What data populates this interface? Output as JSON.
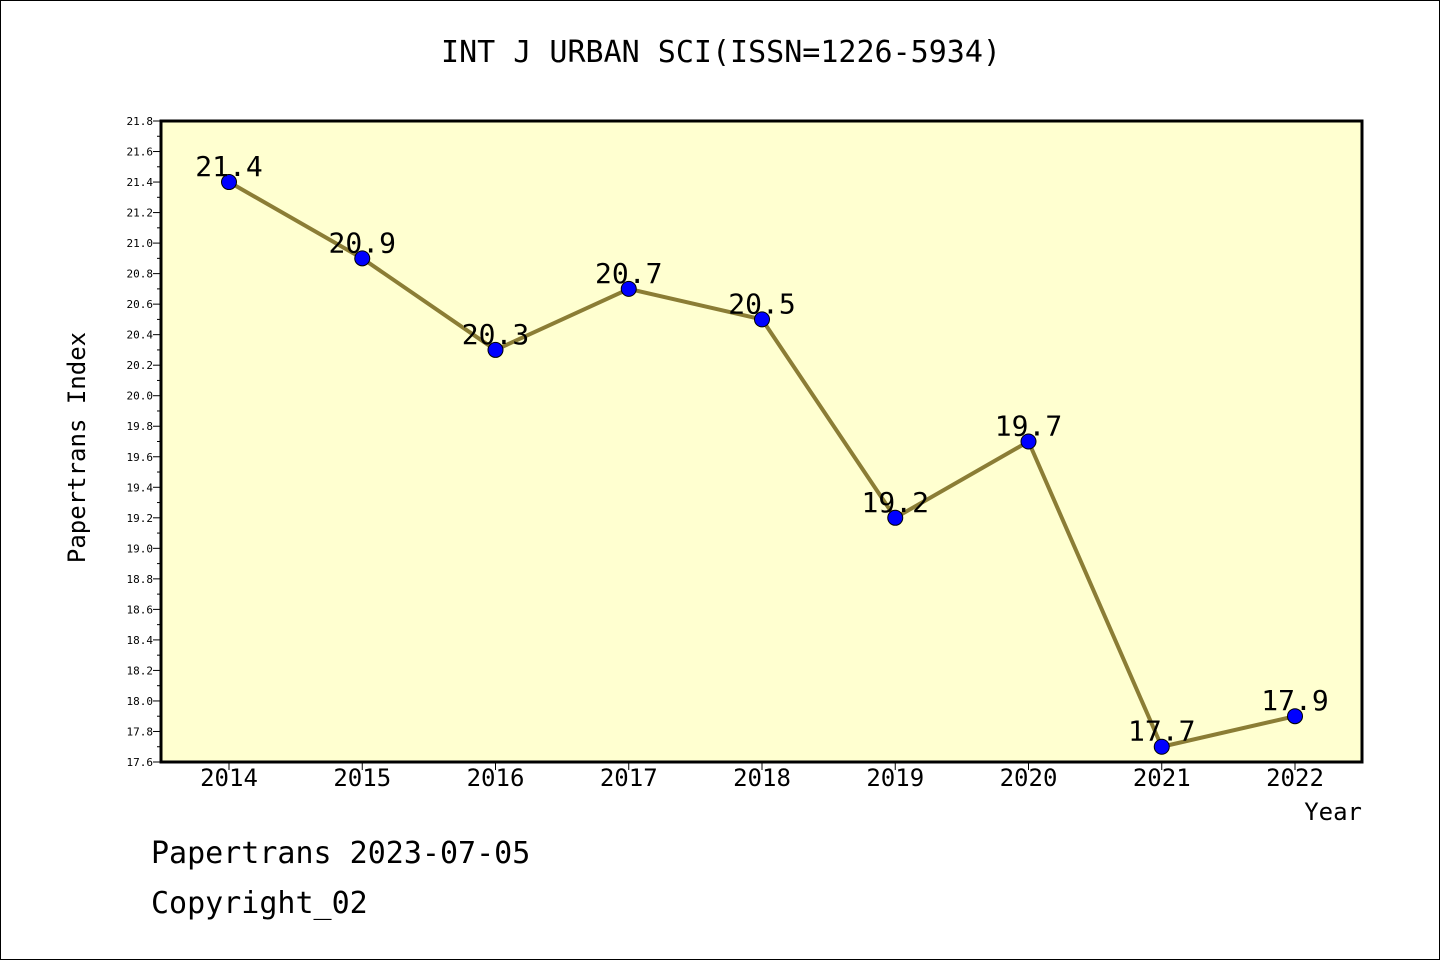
{
  "chart_data": {
    "type": "line",
    "title": "INT J URBAN SCI(ISSN=1226-5934)",
    "xlabel": "Year",
    "ylabel": "Papertrans Index",
    "categories": [
      "2014",
      "2015",
      "2016",
      "2017",
      "2018",
      "2019",
      "2020",
      "2021",
      "2022"
    ],
    "series": [
      {
        "values": [
          21.4,
          20.9,
          20.3,
          20.7,
          20.5,
          19.2,
          19.7,
          17.7,
          17.9
        ],
        "labels": [
          "21.4",
          "20.9",
          "20.3",
          "20.7",
          "20.5",
          "19.2",
          "19.7",
          "17.7",
          "17.9"
        ]
      }
    ],
    "yticks": [
      "17.6",
      "17.8",
      "18.0",
      "18.2",
      "18.4",
      "18.6",
      "18.8",
      "19.0",
      "19.2",
      "19.4",
      "19.6",
      "19.8",
      "20.0",
      "20.2",
      "20.4",
      "20.6",
      "20.8",
      "21.0",
      "21.2",
      "21.4",
      "21.6",
      "21.8"
    ],
    "ylim": [
      17.6,
      21.8
    ],
    "grid": false,
    "colors": {
      "plot_background": "#ffffd0",
      "line": "#8b7d35",
      "marker": "#0000ff"
    }
  },
  "footer": {
    "line1": "Papertrans 2023-07-05",
    "line2": "Copyright_02"
  }
}
